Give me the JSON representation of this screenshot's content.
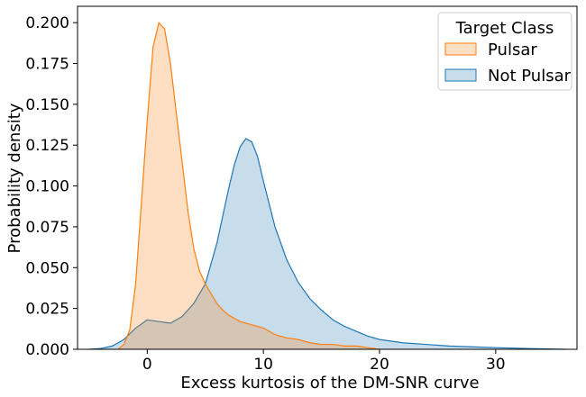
{
  "chart_data": {
    "type": "area",
    "xlabel": "Excess kurtosis of the DM-SNR curve",
    "ylabel": "Probability density",
    "xlim": [
      -6,
      37
    ],
    "ylim": [
      0,
      0.21
    ],
    "xticks": [
      0,
      10,
      20,
      30
    ],
    "yticks": [
      0.0,
      0.025,
      0.05,
      0.075,
      0.1,
      0.125,
      0.15,
      0.175,
      0.2
    ],
    "ytick_labels": [
      "0.000",
      "0.025",
      "0.050",
      "0.075",
      "0.100",
      "0.125",
      "0.150",
      "0.175",
      "0.200"
    ],
    "grid": false,
    "legend": {
      "title": "Target Class",
      "position": "top-right",
      "entries": [
        {
          "label": "Pulsar",
          "color": "#ff7f0e"
        },
        {
          "label": "Not Pulsar",
          "color": "#1f77b4"
        }
      ]
    },
    "series": [
      {
        "name": "Pulsar",
        "color": "#ff7f0e",
        "x": [
          -2.5,
          -2,
          -1.5,
          -1,
          -0.5,
          0,
          0.5,
          1,
          1.5,
          2,
          2.5,
          3,
          3.5,
          4,
          4.5,
          5,
          5.5,
          6,
          6.5,
          7,
          7.5,
          8,
          9,
          10,
          11,
          12,
          13,
          14,
          15,
          16,
          17,
          18,
          19,
          20
        ],
        "y": [
          0.0,
          0.003,
          0.012,
          0.04,
          0.09,
          0.14,
          0.185,
          0.2,
          0.196,
          0.175,
          0.145,
          0.115,
          0.085,
          0.062,
          0.048,
          0.04,
          0.034,
          0.028,
          0.024,
          0.021,
          0.019,
          0.017,
          0.015,
          0.013,
          0.009,
          0.007,
          0.006,
          0.004,
          0.003,
          0.003,
          0.002,
          0.002,
          0.001,
          0.0
        ]
      },
      {
        "name": "Not Pulsar",
        "color": "#1f77b4",
        "x": [
          -5,
          -4,
          -3,
          -2,
          -1,
          0,
          1,
          2,
          3,
          4,
          5,
          6,
          7,
          7.5,
          8,
          8.5,
          9,
          9.5,
          10,
          11,
          12,
          13,
          14,
          15,
          16,
          17,
          18,
          19,
          20,
          22,
          24,
          26,
          28,
          30,
          33,
          36
        ],
        "y": [
          0.0,
          0.0005,
          0.002,
          0.006,
          0.013,
          0.018,
          0.017,
          0.016,
          0.02,
          0.028,
          0.04,
          0.065,
          0.098,
          0.113,
          0.124,
          0.129,
          0.127,
          0.118,
          0.103,
          0.075,
          0.055,
          0.041,
          0.031,
          0.024,
          0.018,
          0.014,
          0.011,
          0.008,
          0.006,
          0.004,
          0.003,
          0.002,
          0.0015,
          0.001,
          0.0004,
          0.0
        ]
      }
    ]
  }
}
